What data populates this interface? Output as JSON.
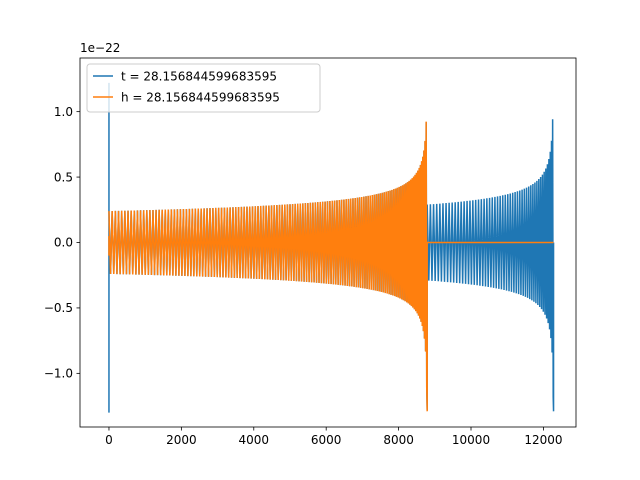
{
  "chart_data": {
    "type": "line",
    "title": "",
    "xlabel": "",
    "ylabel": "",
    "offset_label": "1e−22",
    "xlim": [
      -800,
      12900
    ],
    "ylim": [
      -1.41,
      1.41
    ],
    "xticks": [
      0,
      2000,
      4000,
      6000,
      8000,
      10000,
      12000
    ],
    "xtick_labels": [
      "0",
      "2000",
      "4000",
      "6000",
      "8000",
      "10000",
      "12000"
    ],
    "yticks": [
      -1.0,
      -0.5,
      0.0,
      0.5,
      1.0
    ],
    "ytick_labels": [
      "−1.0",
      "−0.5",
      "0.0",
      "0.5",
      "1.0"
    ],
    "legend_position": "top-left",
    "grid": false,
    "series": [
      {
        "name": "t = 28.156844599683595",
        "color": "#1f77b4",
        "segments": [
          {
            "kind": "spike",
            "x": 0,
            "values": [
              -1.3,
              1.22
            ]
          },
          {
            "kind": "chirp",
            "x_start": 0,
            "x_end": 8790,
            "envelope_start": 0.24,
            "envelope_end": 1.32,
            "x_merger": 8790
          },
          {
            "kind": "chirp",
            "x_start": 8790,
            "x_end": 12280,
            "envelope_start": 0.29,
            "envelope_end": 1.33,
            "x_merger": 12280
          }
        ]
      },
      {
        "name": "h = 28.156844599683595",
        "color": "#ff7f0e",
        "segments": [
          {
            "kind": "spike",
            "x": 0,
            "values": [
              -0.1,
              0.05
            ]
          },
          {
            "kind": "chirp",
            "x_start": 0,
            "x_end": 8790,
            "envelope_start": 0.24,
            "envelope_end": 1.33,
            "x_merger": 8790
          },
          {
            "kind": "flat",
            "x_start": 8790,
            "x_end": 12280,
            "value": 0.0
          }
        ]
      }
    ]
  }
}
